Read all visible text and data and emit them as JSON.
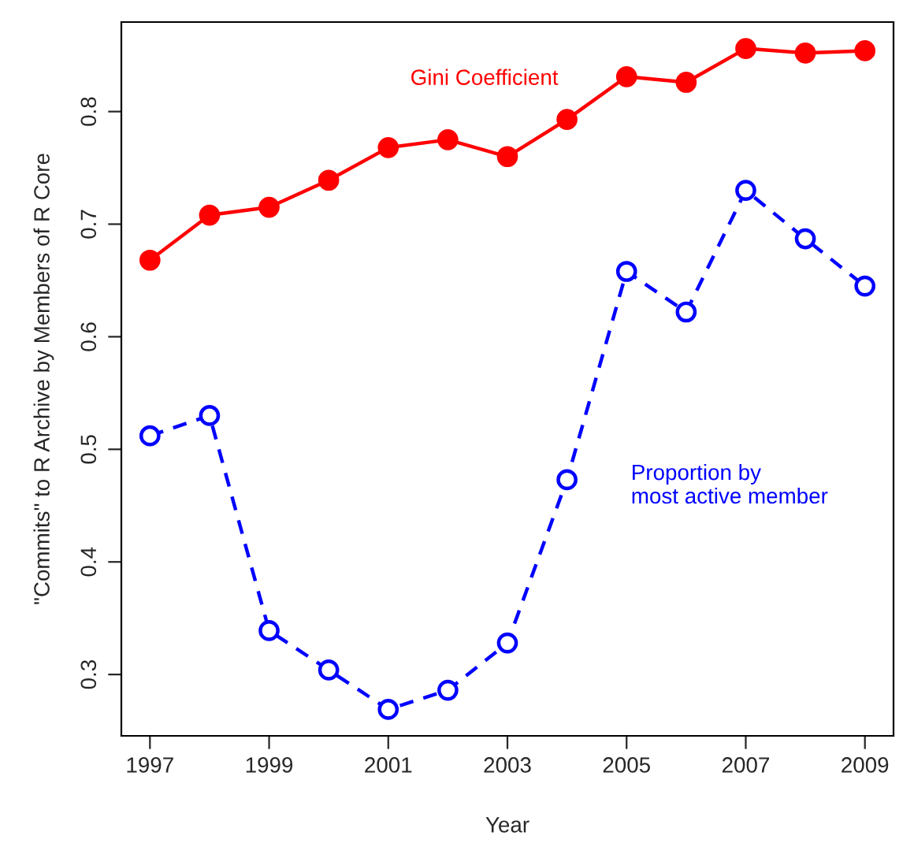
{
  "chart_data": {
    "type": "line",
    "xlabel": "Year",
    "ylabel": "\"Commits\" to R Archive by Members of R Core",
    "x": [
      1997,
      1998,
      1999,
      2000,
      2001,
      2002,
      2003,
      2004,
      2005,
      2006,
      2007,
      2008,
      2009
    ],
    "series": [
      {
        "name": "Gini Coefficient",
        "color": "#ff0000",
        "line_style": "solid",
        "marker": "circle",
        "values": [
          0.668,
          0.708,
          0.715,
          0.739,
          0.768,
          0.775,
          0.76,
          0.793,
          0.831,
          0.826,
          0.856,
          0.852,
          0.854
        ]
      },
      {
        "name": "Proportion by\nmost active member",
        "color": "#0000ff",
        "line_style": "dashed",
        "marker": "circle",
        "values": [
          0.512,
          0.53,
          0.339,
          0.304,
          0.269,
          0.286,
          0.328,
          0.473,
          0.658,
          0.622,
          0.73,
          0.687,
          0.645
        ]
      }
    ],
    "xlim": [
      1996.52,
      2009.48
    ],
    "ylim": [
      0.2455,
      0.8795
    ],
    "xticks": [
      1997,
      1999,
      2001,
      2003,
      2005,
      2007,
      2009
    ],
    "yticks": [
      0.3,
      0.4,
      0.5,
      0.6,
      0.7,
      0.8
    ],
    "grid": false
  }
}
